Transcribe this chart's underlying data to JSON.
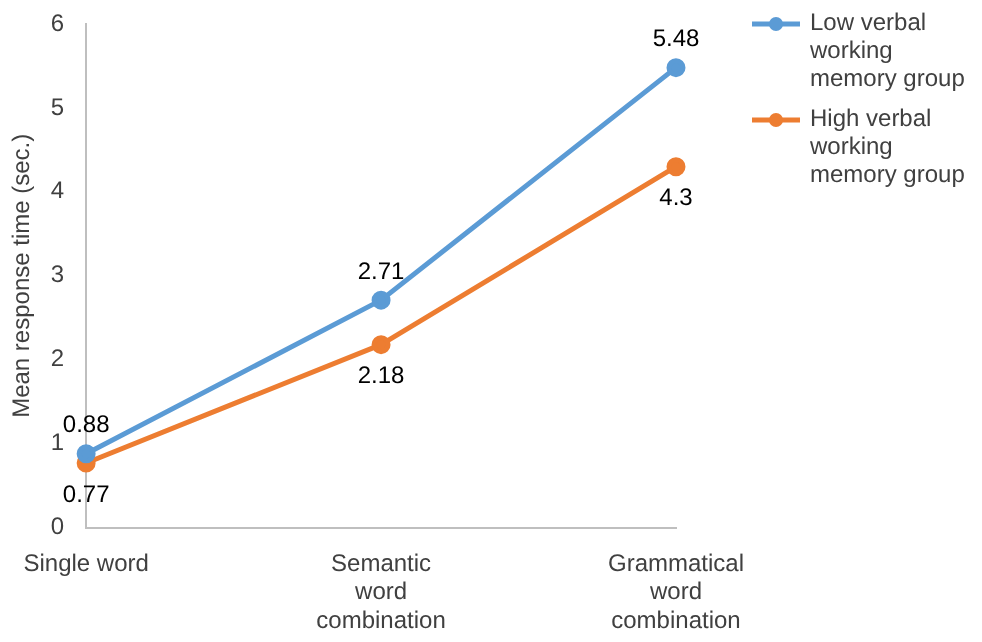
{
  "chart_data": {
    "type": "line",
    "ylabel": "Mean response time (sec.)",
    "categories": [
      "Single word",
      "Semantic word combination",
      "Grammatical word combination"
    ],
    "series": [
      {
        "name": "Low verbal working memory group",
        "color": "#5b9bd5",
        "values": [
          0.88,
          2.71,
          5.48
        ]
      },
      {
        "name": "High verbal working memory group",
        "color": "#ed7d31",
        "values": [
          0.77,
          2.18,
          4.3
        ]
      }
    ],
    "ylim": [
      0,
      6
    ],
    "yticks": [
      0,
      1,
      2,
      3,
      4,
      5,
      6
    ],
    "grid": false,
    "legend": "right",
    "marker": "circle",
    "data_labels": true
  }
}
